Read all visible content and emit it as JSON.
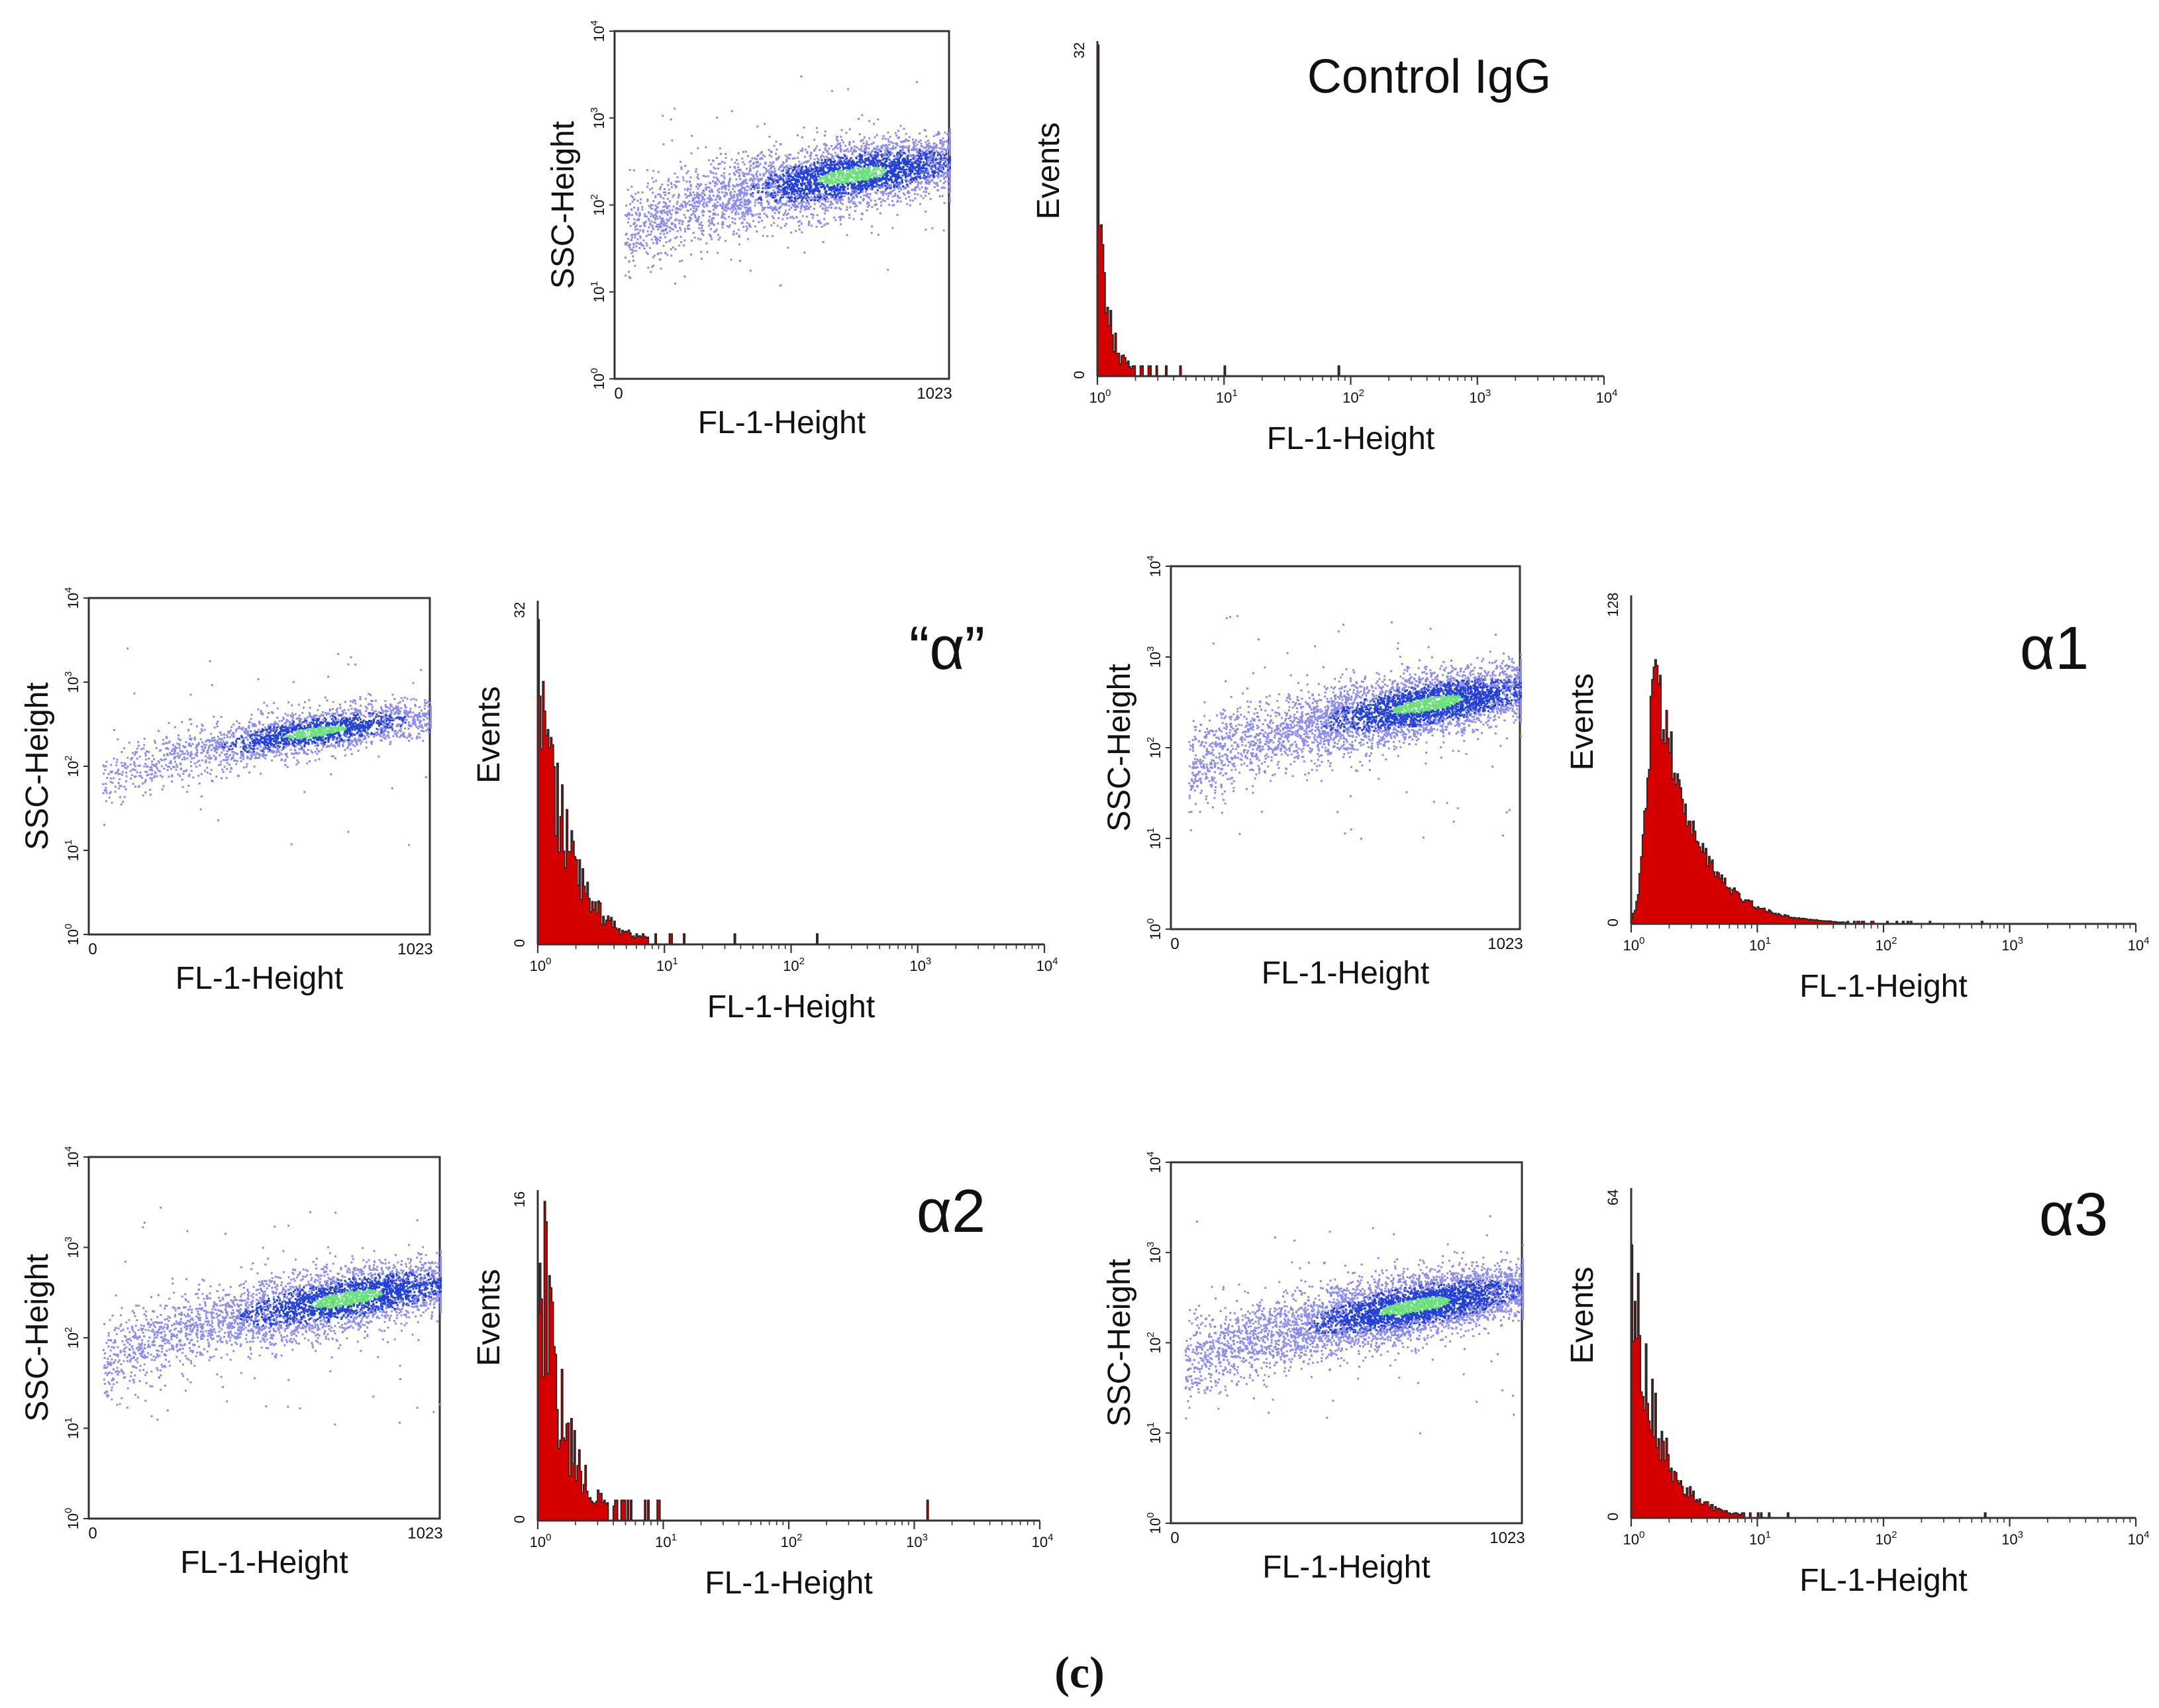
{
  "figure": {
    "panel_label": "(c)"
  },
  "colors": {
    "axis": "#333333",
    "histogram_fill": "#d40000",
    "histogram_outline": "#222222",
    "density_low": "#8c8cf0",
    "density_mid": "#2340d8",
    "density_high": "#6ae07a"
  },
  "chart_data": [
    {
      "id": "igg-scatter",
      "type": "scatter",
      "group": "Control IgG",
      "xlabel": "FL-1-Height",
      "ylabel": "SSC-Height",
      "xlim": [
        0,
        1023
      ],
      "ylim_log10": [
        0,
        4
      ],
      "x_ticks": [
        "0",
        "1023"
      ],
      "y_ticks": [
        {
          "b": "10",
          "e": "0"
        },
        {
          "b": "10",
          "e": "1"
        },
        {
          "b": "10",
          "e": "2"
        },
        {
          "b": "10",
          "e": "3"
        },
        {
          "b": "10",
          "e": "4"
        }
      ],
      "population": {
        "n": 4200,
        "x_start": 30,
        "x_end": 1023,
        "log_start": 1.6,
        "log_end": 2.5,
        "curve": 0.5,
        "spread": 0.22,
        "dense_x": 0.7,
        "dense_w": 0.2,
        "outliers": 60
      }
    },
    {
      "id": "igg-hist",
      "type": "histogram",
      "label": "Control IgG",
      "xlabel": "FL-1-Height",
      "ylabel": "Events",
      "xlim_log10": [
        0,
        4
      ],
      "ylim": [
        0,
        32
      ],
      "y_ticks": [
        "0",
        "32"
      ],
      "x_ticks": [
        {
          "b": "10",
          "e": "0"
        },
        {
          "b": "10",
          "e": "1"
        },
        {
          "b": "10",
          "e": "2"
        },
        {
          "b": "10",
          "e": "3"
        },
        {
          "b": "10",
          "e": "4"
        }
      ],
      "shape": {
        "peak": 24,
        "peak_log": 0.02,
        "decay": 0.07,
        "noise": 0.55,
        "spikes": [
          {
            "log": 0.0,
            "v": 32
          },
          {
            "log": 0.05,
            "v": 10
          },
          {
            "log": 0.12,
            "v": 4
          }
        ],
        "rare": [
          {
            "log": 0.65,
            "v": 1
          },
          {
            "log": 1.0,
            "v": 1
          },
          {
            "log": 1.9,
            "v": 1
          }
        ]
      }
    },
    {
      "id": "a-scatter",
      "type": "scatter",
      "group": "“α”",
      "xlabel": "FL-1-Height",
      "ylabel": "SSC-Height",
      "xlim": [
        0,
        1023
      ],
      "ylim_log10": [
        0,
        4
      ],
      "x_ticks": [
        "0",
        "1023"
      ],
      "y_ticks": [
        {
          "b": "10",
          "e": "0"
        },
        {
          "b": "10",
          "e": "1"
        },
        {
          "b": "10",
          "e": "2"
        },
        {
          "b": "10",
          "e": "3"
        },
        {
          "b": "10",
          "e": "4"
        }
      ],
      "population": {
        "n": 2300,
        "x_start": 40,
        "x_end": 1023,
        "log_start": 1.75,
        "log_end": 2.6,
        "curve": 0.55,
        "spread": 0.15,
        "dense_x": 0.65,
        "dense_w": 0.18,
        "outliers": 40
      }
    },
    {
      "id": "a-hist",
      "type": "histogram",
      "label": "“α”",
      "xlabel": "FL-1-Height",
      "ylabel": "Events",
      "xlim_log10": [
        0,
        4
      ],
      "ylim": [
        0,
        32
      ],
      "y_ticks": [
        "0",
        "32"
      ],
      "x_ticks": [
        {
          "b": "10",
          "e": "0"
        },
        {
          "b": "10",
          "e": "1"
        },
        {
          "b": "10",
          "e": "2"
        },
        {
          "b": "10",
          "e": "3"
        },
        {
          "b": "10",
          "e": "4"
        }
      ],
      "shape": {
        "peak": 25,
        "peak_log": 0.02,
        "decay": 0.22,
        "noise": 0.35,
        "spikes": [],
        "rare": [
          {
            "log": 1.15,
            "v": 1
          },
          {
            "log": 2.2,
            "v": 1
          }
        ]
      }
    },
    {
      "id": "a1-scatter",
      "type": "scatter",
      "group": "α1",
      "xlabel": "FL-1-Height",
      "ylabel": "SSC-Height",
      "xlim": [
        0,
        1023
      ],
      "ylim_log10": [
        0,
        4
      ],
      "x_ticks": [
        "0",
        "1023"
      ],
      "y_ticks": [
        {
          "b": "10",
          "e": "0"
        },
        {
          "b": "10",
          "e": "1"
        },
        {
          "b": "10",
          "e": "2"
        },
        {
          "b": "10",
          "e": "3"
        },
        {
          "b": "10",
          "e": "4"
        }
      ],
      "population": {
        "n": 4500,
        "x_start": 50,
        "x_end": 1023,
        "log_start": 1.75,
        "log_end": 2.65,
        "curve": 0.6,
        "spread": 0.2,
        "dense_x": 0.72,
        "dense_w": 0.2,
        "outliers": 70
      }
    },
    {
      "id": "a1-hist",
      "type": "histogram",
      "label": "α1",
      "xlabel": "FL-1-Height",
      "ylabel": "Events",
      "xlim_log10": [
        0,
        4
      ],
      "ylim": [
        0,
        128
      ],
      "y_ticks": [
        "0",
        "128"
      ],
      "x_ticks": [
        {
          "b": "10",
          "e": "0"
        },
        {
          "b": "10",
          "e": "1"
        },
        {
          "b": "10",
          "e": "2"
        },
        {
          "b": "10",
          "e": "3"
        },
        {
          "b": "10",
          "e": "4"
        }
      ],
      "shape": {
        "peak": 98,
        "peak_log": 0.2,
        "decay": 0.3,
        "rise": 0.1,
        "noise": 0.15,
        "spikes": [],
        "rare": []
      }
    },
    {
      "id": "a2-scatter",
      "type": "scatter",
      "group": "α2",
      "xlabel": "FL-1-Height",
      "ylabel": "SSC-Height",
      "xlim": [
        0,
        1023
      ],
      "ylim_log10": [
        0,
        4
      ],
      "x_ticks": [
        "0",
        "1023"
      ],
      "y_ticks": [
        {
          "b": "10",
          "e": "0"
        },
        {
          "b": "10",
          "e": "1"
        },
        {
          "b": "10",
          "e": "2"
        },
        {
          "b": "10",
          "e": "3"
        },
        {
          "b": "10",
          "e": "4"
        }
      ],
      "population": {
        "n": 3800,
        "x_start": 40,
        "x_end": 1023,
        "log_start": 1.65,
        "log_end": 2.6,
        "curve": 0.55,
        "spread": 0.2,
        "dense_x": 0.72,
        "dense_w": 0.2,
        "outliers": 80
      }
    },
    {
      "id": "a2-hist",
      "type": "histogram",
      "label": "α2",
      "xlabel": "FL-1-Height",
      "ylabel": "Events",
      "xlim_log10": [
        0,
        4
      ],
      "ylim": [
        0,
        16
      ],
      "y_ticks": [
        "0",
        "16"
      ],
      "x_ticks": [
        {
          "b": "10",
          "e": "0"
        },
        {
          "b": "10",
          "e": "1"
        },
        {
          "b": "10",
          "e": "2"
        },
        {
          "b": "10",
          "e": "3"
        },
        {
          "b": "10",
          "e": "4"
        }
      ],
      "shape": {
        "peak": 14,
        "peak_log": 0.02,
        "decay": 0.18,
        "noise": 0.45,
        "spikes": [],
        "rare": [
          {
            "log": 0.95,
            "v": 1
          },
          {
            "log": 3.1,
            "v": 1
          }
        ]
      }
    },
    {
      "id": "a3-scatter",
      "type": "scatter",
      "group": "α3",
      "xlabel": "FL-1-Height",
      "ylabel": "SSC-Height",
      "xlim": [
        0,
        1023
      ],
      "ylim_log10": [
        0,
        4
      ],
      "x_ticks": [
        "0",
        "1023"
      ],
      "y_ticks": [
        {
          "b": "10",
          "e": "0"
        },
        {
          "b": "10",
          "e": "1"
        },
        {
          "b": "10",
          "e": "2"
        },
        {
          "b": "10",
          "e": "3"
        },
        {
          "b": "10",
          "e": "4"
        }
      ],
      "population": {
        "n": 4800,
        "x_start": 40,
        "x_end": 1023,
        "log_start": 1.65,
        "log_end": 2.6,
        "curve": 0.55,
        "spread": 0.2,
        "dense_x": 0.68,
        "dense_w": 0.2,
        "outliers": 60
      }
    },
    {
      "id": "a3-hist",
      "type": "histogram",
      "label": "α3",
      "xlabel": "FL-1-Height",
      "ylabel": "Events",
      "xlim_log10": [
        0,
        4
      ],
      "ylim": [
        0,
        64
      ],
      "y_ticks": [
        "0",
        "64"
      ],
      "x_ticks": [
        {
          "b": "10",
          "e": "0"
        },
        {
          "b": "10",
          "e": "1"
        },
        {
          "b": "10",
          "e": "2"
        },
        {
          "b": "10",
          "e": "3"
        },
        {
          "b": "10",
          "e": "4"
        }
      ],
      "shape": {
        "peak": 46,
        "peak_log": 0.02,
        "decay": 0.2,
        "noise": 0.3,
        "spikes": [],
        "rare": [
          {
            "log": 2.8,
            "v": 1
          }
        ]
      }
    }
  ]
}
